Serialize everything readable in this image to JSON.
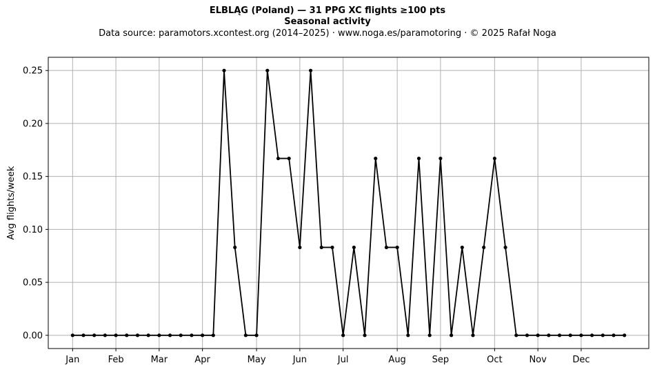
{
  "header": {
    "title": "ELBLĄG (Poland)  —  31 PPG XC flights ≥100 pts",
    "subtitle": "Seasonal activity",
    "source": "Data source: paramotors.xcontest.org (2014–2025)  ·  www.noga.es/paramotoring  ·  © 2025 Rafał Noga"
  },
  "chart_data": {
    "type": "line",
    "title": "ELBLĄG (Poland)  —  31 PPG XC flights ≥100 pts",
    "subtitle": "Seasonal activity",
    "xlabel": "",
    "ylabel": "Avg flights/week",
    "x_unit": "week of year",
    "xlim": [
      -1.25,
      54.25
    ],
    "ylim": [
      -0.0125,
      0.2625
    ],
    "grid": true,
    "line_color": "#000000",
    "grid_color": "#b0b0b0",
    "x_ticks": [
      {
        "label": "Jan",
        "x": 1
      },
      {
        "label": "Feb",
        "x": 5
      },
      {
        "label": "Mar",
        "x": 9
      },
      {
        "label": "Apr",
        "x": 13
      },
      {
        "label": "May",
        "x": 18
      },
      {
        "label": "Jun",
        "x": 22
      },
      {
        "label": "Jul",
        "x": 26
      },
      {
        "label": "Aug",
        "x": 31
      },
      {
        "label": "Sep",
        "x": 35
      },
      {
        "label": "Oct",
        "x": 40
      },
      {
        "label": "Nov",
        "x": 44
      },
      {
        "label": "Dec",
        "x": 48
      }
    ],
    "y_ticks": [
      {
        "label": "0.00",
        "y": 0
      },
      {
        "label": "0.05",
        "y": 0.05
      },
      {
        "label": "0.10",
        "y": 0.1
      },
      {
        "label": "0.15",
        "y": 0.15
      },
      {
        "label": "0.20",
        "y": 0.2
      },
      {
        "label": "0.25",
        "y": 0.25
      }
    ],
    "series": [
      {
        "x": [
          1,
          2,
          3,
          4,
          5,
          6,
          7,
          8,
          9,
          10,
          11,
          12,
          13,
          14,
          15,
          16,
          17,
          18,
          19,
          20,
          21,
          22,
          23,
          24,
          25,
          26,
          27,
          28,
          29,
          30,
          31,
          32,
          33,
          34,
          35,
          36,
          37,
          38,
          39,
          40,
          41,
          42,
          43,
          44,
          45,
          46,
          47,
          48,
          49,
          50,
          51,
          52
        ],
        "values": [
          0,
          0,
          0,
          0,
          0,
          0,
          0,
          0,
          0,
          0,
          0,
          0,
          0,
          0,
          0.25,
          0.083,
          0,
          0,
          0.25,
          0.167,
          0.167,
          0.083,
          0.25,
          0.083,
          0.083,
          0,
          0.083,
          0,
          0.167,
          0.083,
          0.083,
          0,
          0.167,
          0,
          0.167,
          0,
          0.083,
          0,
          0.083,
          0.167,
          0.083,
          0,
          0,
          0,
          0,
          0,
          0,
          0,
          0,
          0,
          0,
          0
        ]
      }
    ]
  }
}
